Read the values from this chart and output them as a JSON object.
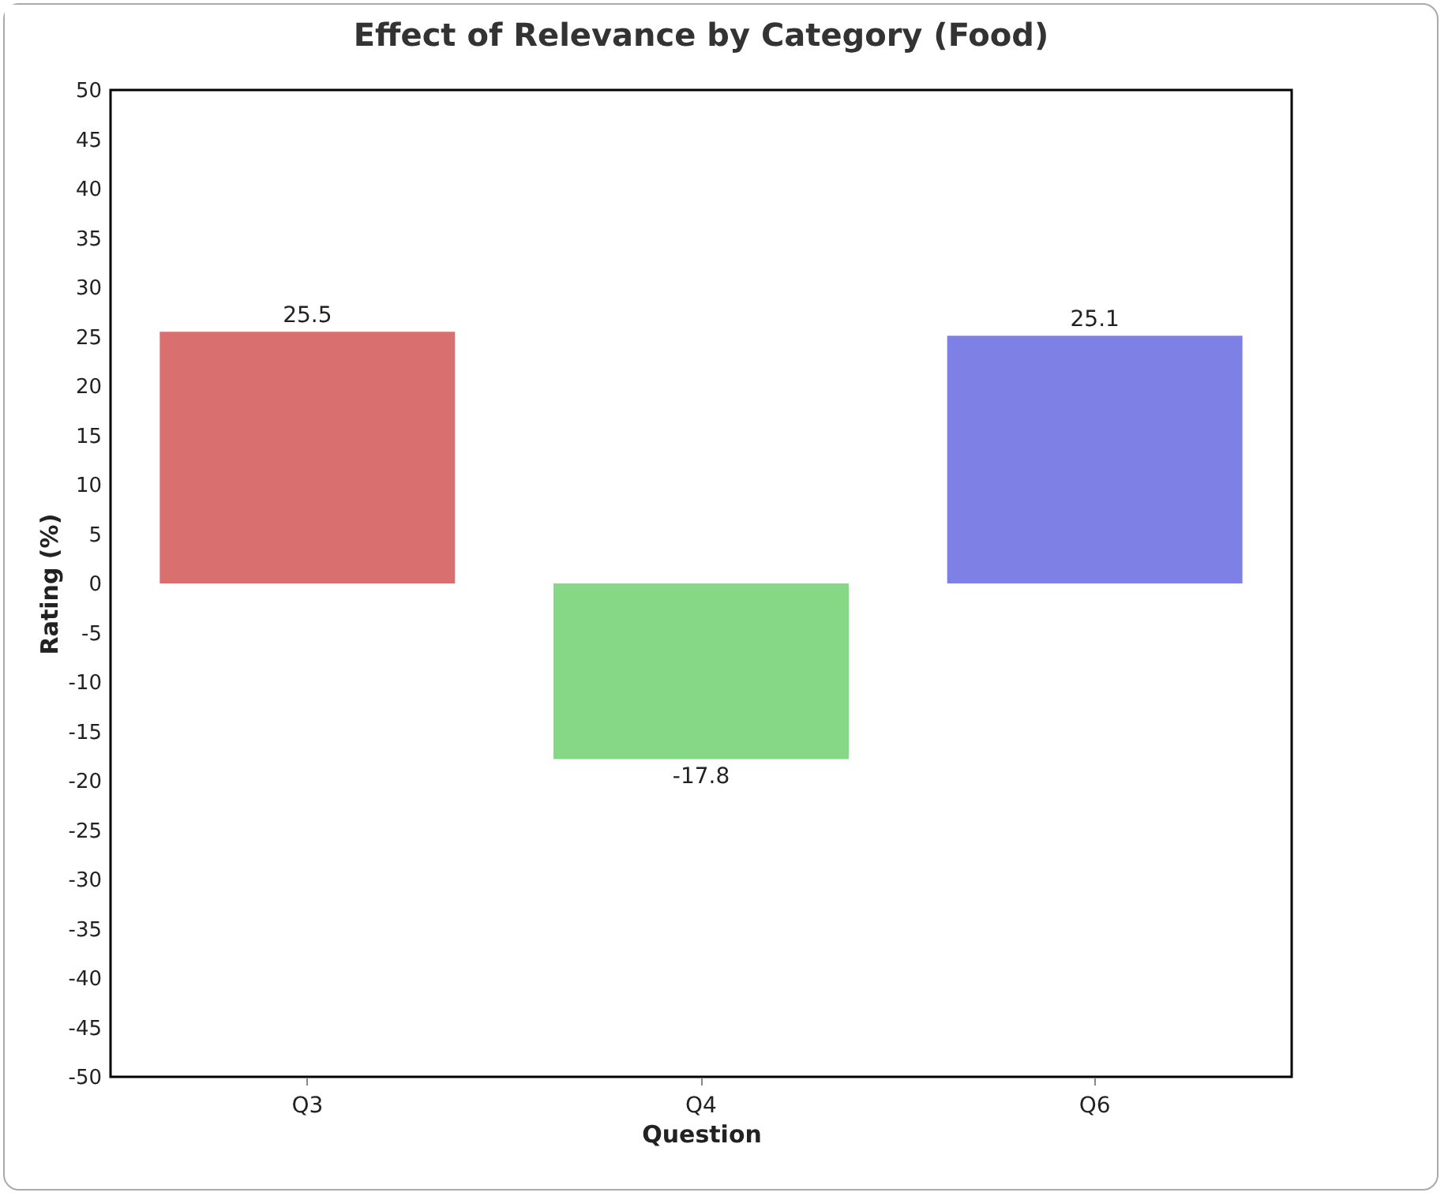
{
  "chart_data": {
    "type": "bar",
    "title": "Effect of Relevance by Category (Food)",
    "xlabel": "Question",
    "ylabel": "Rating (%)",
    "categories": [
      "Q3",
      "Q4",
      "Q6"
    ],
    "values": [
      25.5,
      -17.8,
      25.1
    ],
    "colors": [
      "#d9706f",
      "#86d886",
      "#7f80e6"
    ],
    "ylim": [
      -50,
      50
    ],
    "yticks": [
      -50,
      -45,
      -40,
      -35,
      -30,
      -25,
      -20,
      -15,
      -10,
      -5,
      0,
      5,
      10,
      15,
      20,
      25,
      30,
      35,
      40,
      45,
      50
    ],
    "grid": false,
    "data_labels": true
  }
}
